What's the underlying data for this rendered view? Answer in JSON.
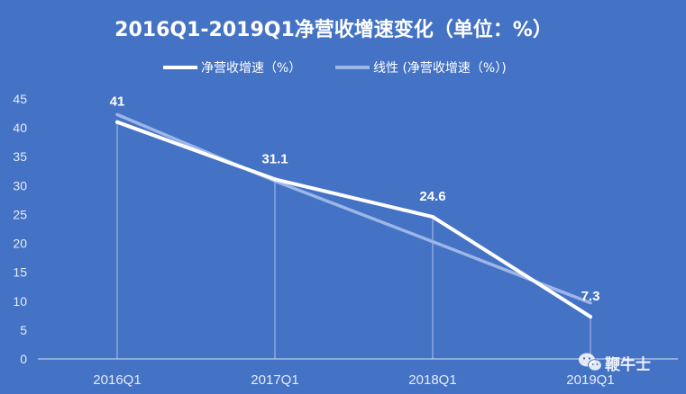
{
  "chart_data": {
    "type": "line",
    "title": "2016Q1-2019Q1净营收增速变化（单位：%）",
    "categories": [
      "2016Q1",
      "2017Q1",
      "2018Q1",
      "2019Q1"
    ],
    "series": [
      {
        "name": "净营收增速（%）",
        "values": [
          41,
          31.1,
          24.6,
          7.3
        ],
        "data_labels": [
          "41",
          "31.1",
          "24.6",
          "7.3"
        ]
      },
      {
        "name": "线性 (净营收增速（%）)",
        "values": [
          42.3,
          30.8,
          20.3,
          9.7
        ]
      }
    ],
    "ylim": [
      0,
      45
    ],
    "yticks": [
      "0",
      "5",
      "10",
      "15",
      "20",
      "25",
      "30",
      "35",
      "40",
      "45"
    ],
    "legend_position": "top-center",
    "grid": false
  },
  "watermark": {
    "text": "鞭牛士",
    "icon": "wechat-icon"
  },
  "colors": {
    "background": "#4472C4",
    "series_main": "#FFFFFF",
    "series_trend": "#9DB6E8",
    "axis_text": "#E6ECF8"
  }
}
